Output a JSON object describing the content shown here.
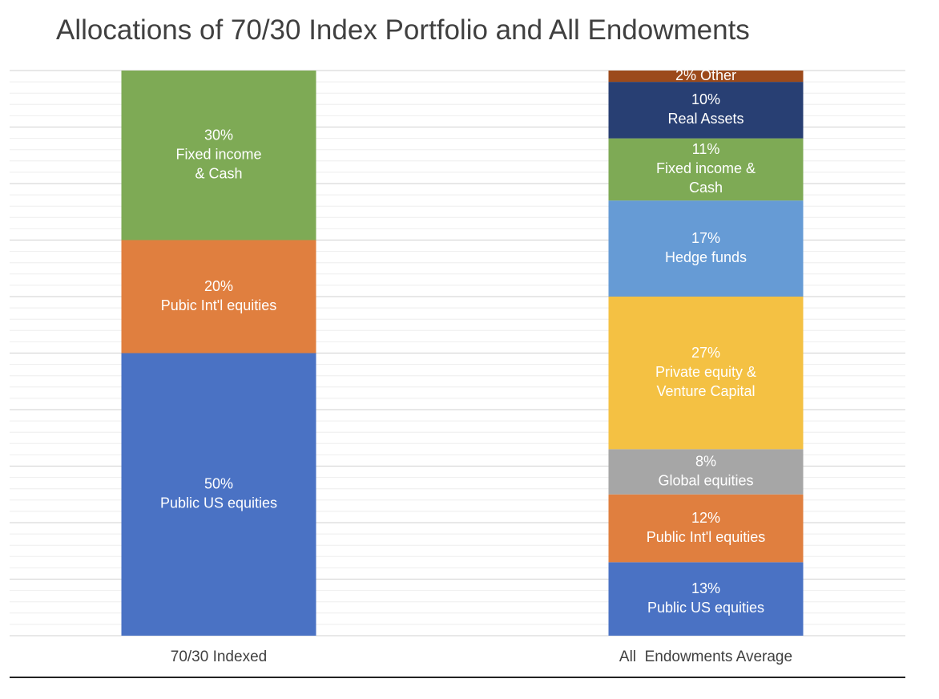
{
  "chart_data": {
    "type": "bar",
    "stacked": true,
    "title": "Allocations of 70/30 Index Portfolio and All Endowments",
    "xlabel": "",
    "ylabel": "",
    "ylim": [
      0,
      100
    ],
    "grid": true,
    "categories": [
      "70/30 Indexed",
      "All  Endowments Average"
    ],
    "bars": [
      {
        "category": "70/30 Indexed",
        "segments": [
          {
            "value": 50,
            "label_pct": "50%",
            "label_text": [
              "Public US equities"
            ],
            "color": "#4a72c4"
          },
          {
            "value": 20,
            "label_pct": "20%",
            "label_text": [
              "Pubic Int'l equities"
            ],
            "color": "#e07f3f"
          },
          {
            "value": 30,
            "label_pct": "30%",
            "label_text": [
              "Fixed income",
              "& Cash"
            ],
            "color": "#7eaa55"
          }
        ]
      },
      {
        "category": "All  Endowments Average",
        "segments": [
          {
            "value": 13,
            "label_pct": "13%",
            "label_text": [
              "Public US equities"
            ],
            "color": "#4a72c4"
          },
          {
            "value": 12,
            "label_pct": "12%",
            "label_text": [
              "Public Int'l equities"
            ],
            "color": "#e07f3f"
          },
          {
            "value": 8,
            "label_pct": "8%",
            "label_text": [
              "Global equities"
            ],
            "color": "#a6a6a6"
          },
          {
            "value": 27,
            "label_pct": "27%",
            "label_text": [
              "Private equity &",
              "Venture Capital"
            ],
            "color": "#f4c143"
          },
          {
            "value": 17,
            "label_pct": "17%",
            "label_text": [
              "Hedge funds"
            ],
            "color": "#669bd5"
          },
          {
            "value": 11,
            "label_pct": "11%",
            "label_text": [
              "Fixed income &",
              "Cash"
            ],
            "color": "#7eaa55"
          },
          {
            "value": 10,
            "label_pct": "10%",
            "label_text": [
              "Real Assets"
            ],
            "color": "#283f73"
          },
          {
            "value": 2,
            "label_pct": "",
            "label_text": [
              "2% Other"
            ],
            "color": "#9c4a1b"
          }
        ]
      }
    ]
  }
}
